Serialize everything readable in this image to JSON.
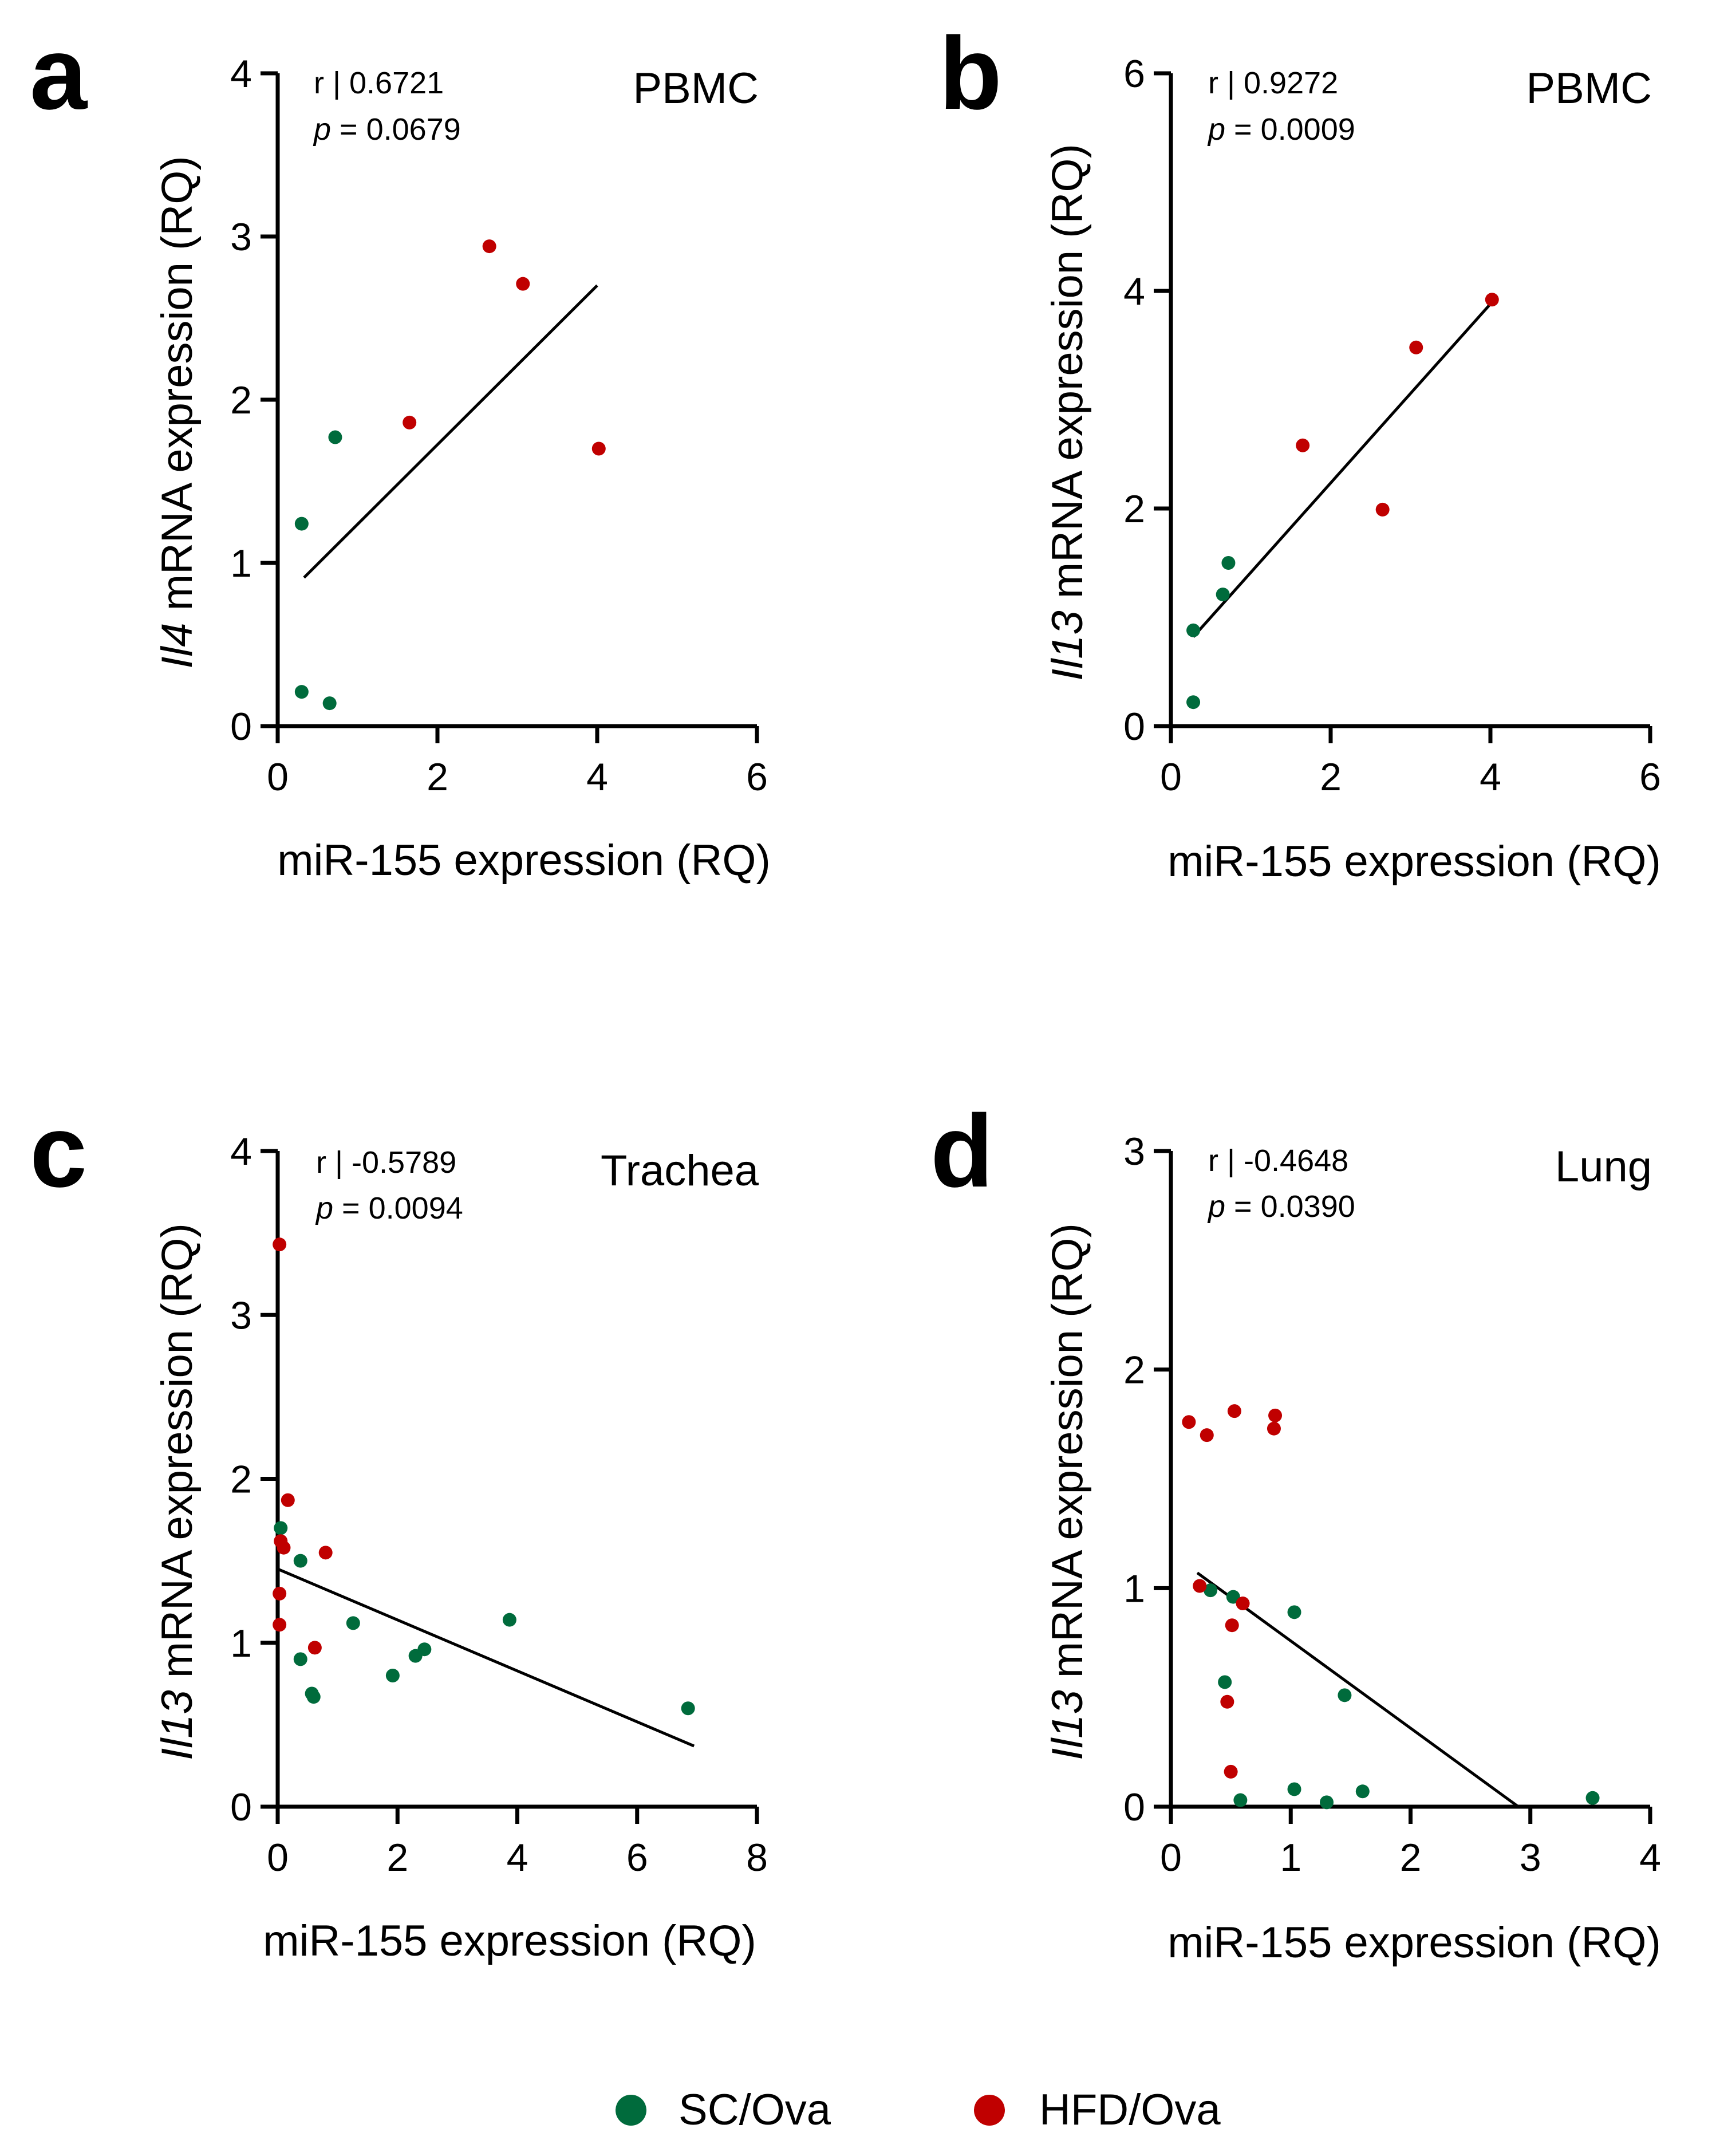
{
  "figure": {
    "legend": [
      {
        "label": "SC/Ova",
        "color": "#006b3c"
      },
      {
        "label": "HFD/Ova",
        "color": "#c00000"
      }
    ]
  },
  "chart_data": [
    {
      "panel": "a",
      "type": "scatter",
      "tissue": "PBMC",
      "stat_r": "r | 0.6721",
      "stat_p_label": "p",
      "stat_p_value": " = 0.0679",
      "xlabel": "miR-155 expression (RQ)",
      "ylabel_gene": "Il4",
      "ylabel_rest": " mRNA expression (RQ)",
      "xlim": [
        0,
        6
      ],
      "ylim": [
        0,
        4
      ],
      "xticks": [
        0,
        2,
        4,
        6
      ],
      "yticks": [
        0,
        1,
        2,
        3,
        4
      ],
      "series": [
        {
          "name": "SC/Ova",
          "color": "#006b3c",
          "points": [
            [
              0.3,
              1.24
            ],
            [
              0.72,
              1.77
            ],
            [
              0.3,
              0.21
            ],
            [
              0.65,
              0.14
            ]
          ]
        },
        {
          "name": "HFD/Ova",
          "color": "#c00000",
          "points": [
            [
              1.65,
              1.86
            ],
            [
              2.65,
              2.94
            ],
            [
              3.07,
              2.71
            ],
            [
              4.02,
              1.7
            ]
          ]
        }
      ],
      "fit_line": [
        [
          0.33,
          0.91
        ],
        [
          4.0,
          2.7
        ]
      ]
    },
    {
      "panel": "b",
      "type": "scatter",
      "tissue": "PBMC",
      "stat_r": "r | 0.9272",
      "stat_p_label": "p",
      "stat_p_value": " = 0.0009",
      "xlabel": "miR-155 expression (RQ)",
      "ylabel_gene": "Il13",
      "ylabel_rest": " mRNA expression (RQ)",
      "xlim": [
        0,
        6
      ],
      "ylim": [
        0,
        6
      ],
      "xticks": [
        0,
        2,
        4,
        6
      ],
      "yticks": [
        0,
        2,
        4,
        6
      ],
      "series": [
        {
          "name": "SC/Ova",
          "color": "#006b3c",
          "points": [
            [
              0.28,
              0.88
            ],
            [
              0.65,
              1.21
            ],
            [
              0.72,
              1.5
            ],
            [
              0.28,
              0.22
            ]
          ]
        },
        {
          "name": "HFD/Ova",
          "color": "#c00000",
          "points": [
            [
              1.65,
              2.58
            ],
            [
              2.65,
              1.99
            ],
            [
              3.07,
              3.48
            ],
            [
              4.02,
              3.92
            ]
          ]
        }
      ],
      "fit_line": [
        [
          0.28,
          0.82
        ],
        [
          4.0,
          3.88
        ]
      ]
    },
    {
      "panel": "c",
      "type": "scatter",
      "tissue": "Trachea",
      "stat_r": "r | -0.5789",
      "stat_p_label": "p",
      "stat_p_value": " = 0.0094",
      "xlabel": "miR-155 expression (RQ)",
      "ylabel_gene": "Il13",
      "ylabel_rest": " mRNA expression (RQ)",
      "xlim": [
        0,
        8
      ],
      "ylim": [
        0,
        4
      ],
      "xticks": [
        0,
        2,
        4,
        6,
        8
      ],
      "yticks": [
        0,
        1,
        2,
        3,
        4
      ],
      "series": [
        {
          "name": "SC/Ova",
          "color": "#006b3c",
          "points": [
            [
              0.05,
              1.7
            ],
            [
              0.38,
              1.5
            ],
            [
              0.38,
              0.9
            ],
            [
              0.57,
              0.69
            ],
            [
              0.6,
              0.67
            ],
            [
              1.26,
              1.12
            ],
            [
              1.92,
              0.8
            ],
            [
              2.3,
              0.92
            ],
            [
              2.45,
              0.96
            ],
            [
              3.87,
              1.14
            ],
            [
              6.85,
              0.6
            ]
          ]
        },
        {
          "name": "HFD/Ova",
          "color": "#c00000",
          "points": [
            [
              0.03,
              3.43
            ],
            [
              0.17,
              1.87
            ],
            [
              0.05,
              1.62
            ],
            [
              0.1,
              1.58
            ],
            [
              0.03,
              1.3
            ],
            [
              0.03,
              1.11
            ],
            [
              0.62,
              0.97
            ],
            [
              0.8,
              1.55
            ]
          ]
        }
      ],
      "fit_line": [
        [
          0.0,
          1.45
        ],
        [
          6.95,
          0.37
        ]
      ]
    },
    {
      "panel": "d",
      "type": "scatter",
      "tissue": "Lung",
      "stat_r": "r | -0.4648",
      "stat_p_label": "p",
      "stat_p_value": " = 0.0390",
      "xlabel": "miR-155 expression (RQ)",
      "ylabel_gene": "Il13",
      "ylabel_rest": " mRNA expression (RQ)",
      "xlim": [
        0,
        4
      ],
      "ylim": [
        0,
        3
      ],
      "xticks": [
        0,
        1,
        2,
        3,
        4
      ],
      "yticks": [
        0,
        1,
        2,
        3
      ],
      "series": [
        {
          "name": "SC/Ova",
          "color": "#006b3c",
          "points": [
            [
              0.33,
              0.99
            ],
            [
              0.52,
              0.96
            ],
            [
              0.45,
              0.57
            ],
            [
              0.58,
              0.03
            ],
            [
              1.03,
              0.89
            ],
            [
              1.03,
              0.08
            ],
            [
              1.3,
              0.02
            ],
            [
              1.45,
              0.51
            ],
            [
              1.6,
              0.07
            ],
            [
              3.52,
              0.04
            ]
          ]
        },
        {
          "name": "HFD/Ova",
          "color": "#c00000",
          "points": [
            [
              0.15,
              1.76
            ],
            [
              0.3,
              1.7
            ],
            [
              0.53,
              1.81
            ],
            [
              0.87,
              1.79
            ],
            [
              0.86,
              1.73
            ],
            [
              0.24,
              1.01
            ],
            [
              0.6,
              0.93
            ],
            [
              0.51,
              0.83
            ],
            [
              0.47,
              0.48
            ],
            [
              0.5,
              0.16
            ]
          ]
        }
      ],
      "fit_line": [
        [
          0.22,
          1.07
        ],
        [
          2.9,
          0.0
        ]
      ]
    }
  ]
}
